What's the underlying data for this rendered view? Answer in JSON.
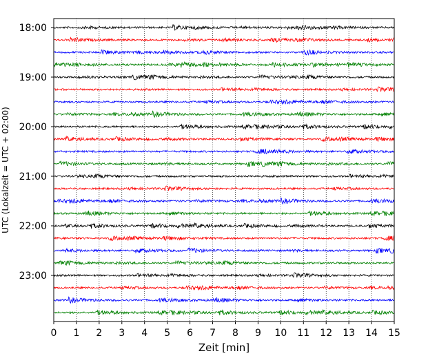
{
  "chart_data": {
    "type": "line",
    "xlabel": "Zeit  [min]",
    "ylabel": "UTC (Lokalzeit = UTC + 02:00)",
    "xlim": [
      0,
      15
    ],
    "x_ticks": [
      "0",
      "1",
      "2",
      "3",
      "4",
      "5",
      "6",
      "7",
      "8",
      "9",
      "10",
      "11",
      "12",
      "13",
      "14",
      "15"
    ],
    "y_ticks": [
      "18:00",
      "19:00",
      "20:00",
      "21:00",
      "22:00",
      "23:00"
    ],
    "row_interval_min": 15,
    "row_count": 24,
    "trace_colors": [
      "#000000",
      "#ff0000",
      "#0000ff",
      "#008000"
    ],
    "grid": "vertical dotted at each minute"
  }
}
